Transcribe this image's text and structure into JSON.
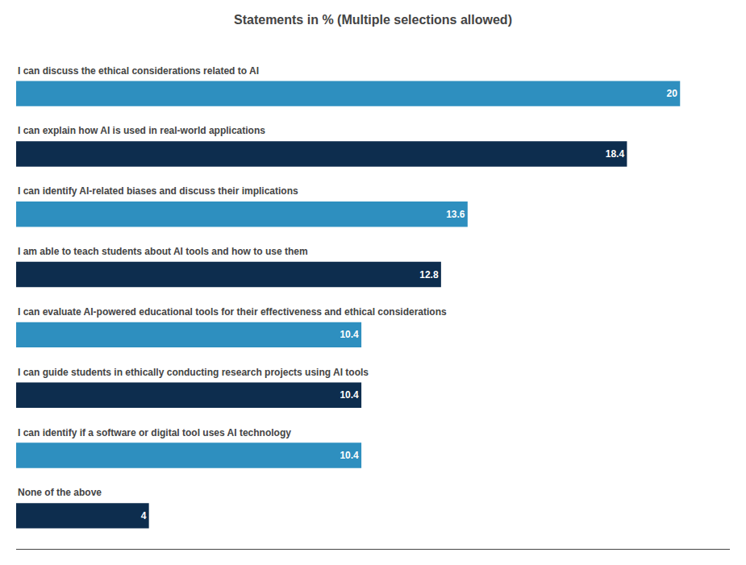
{
  "chart_data": {
    "type": "bar",
    "orientation": "horizontal",
    "title": "Statements in % (Multiple selections allowed)",
    "categories": [
      "I can discuss the ethical considerations related to AI",
      "I can explain how AI is used in real-world applications",
      "I can identify AI-related biases and discuss their implications",
      "I am able to teach students about AI tools and how to use them",
      "I can evaluate AI-powered educational tools for their effectiveness and ethical considerations",
      "I can guide students in ethically conducting research projects using AI tools",
      "I can identify if a software or digital tool uses AI technology",
      "None of the above"
    ],
    "values": [
      20,
      18.4,
      13.6,
      12.8,
      10.4,
      10.4,
      10.4,
      4
    ],
    "colors": [
      "#2e8fbf",
      "#0d2d4e",
      "#2e8fbf",
      "#0d2d4e",
      "#2e8fbf",
      "#0d2d4e",
      "#2e8fbf",
      "#0d2d4e"
    ],
    "xlim": [
      0,
      21.5
    ],
    "data_labels": true,
    "tick_labels": false,
    "grid": false
  }
}
